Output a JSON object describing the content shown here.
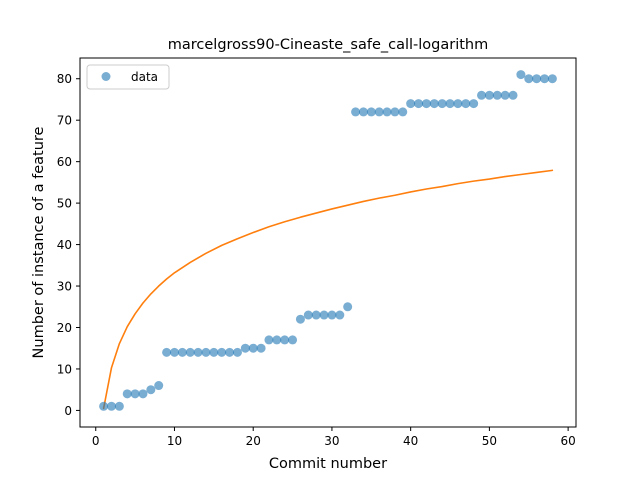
{
  "chart_data": {
    "type": "scatter",
    "title": "marcelgross90-Cineaste_safe_call-logarithm",
    "xlabel": "Commit number",
    "ylabel": "Number of instance of a feature",
    "xlim": [
      -2,
      61
    ],
    "ylim": [
      -4,
      85
    ],
    "xticks": [
      0,
      10,
      20,
      30,
      40,
      50,
      60
    ],
    "yticks": [
      0,
      10,
      20,
      30,
      40,
      50,
      60,
      70,
      80
    ],
    "grid": false,
    "legend": {
      "position": "upper-left",
      "entries": [
        "data"
      ]
    },
    "series": [
      {
        "name": "data",
        "kind": "scatter",
        "color": "#1f77b4",
        "x": [
          1,
          2,
          3,
          4,
          5,
          6,
          7,
          8,
          9,
          10,
          11,
          12,
          13,
          14,
          15,
          16,
          17,
          18,
          19,
          20,
          21,
          22,
          23,
          24,
          25,
          26,
          27,
          28,
          29,
          30,
          31,
          32,
          33,
          34,
          35,
          36,
          37,
          38,
          39,
          40,
          41,
          42,
          43,
          44,
          45,
          46,
          47,
          48,
          49,
          50,
          51,
          52,
          53,
          54,
          55,
          56,
          57,
          58
        ],
        "y": [
          1,
          1,
          1,
          4,
          4,
          4,
          5,
          6,
          14,
          14,
          14,
          14,
          14,
          14,
          14,
          14,
          14,
          14,
          15,
          15,
          15,
          17,
          17,
          17,
          17,
          22,
          23,
          23,
          23,
          23,
          23,
          25,
          72,
          72,
          72,
          72,
          72,
          72,
          72,
          74,
          74,
          74,
          74,
          74,
          74,
          74,
          74,
          74,
          76,
          76,
          76,
          76,
          76,
          81,
          80,
          80,
          80,
          80
        ]
      },
      {
        "kind": "line",
        "color": "#ff7f0e",
        "x": [
          1,
          2,
          3,
          4,
          5,
          6,
          7,
          8,
          9,
          10,
          12,
          14,
          16,
          18,
          20,
          22,
          24,
          26,
          28,
          30,
          32,
          34,
          36,
          38,
          40,
          42,
          44,
          46,
          48,
          50,
          52,
          54,
          56,
          58
        ],
        "y": [
          0.5,
          10.3,
          16.1,
          20.2,
          23.3,
          25.9,
          28.1,
          30.0,
          31.7,
          33.2,
          35.7,
          37.9,
          39.8,
          41.4,
          42.9,
          44.3,
          45.5,
          46.6,
          47.6,
          48.6,
          49.5,
          50.4,
          51.2,
          51.9,
          52.7,
          53.4,
          54.0,
          54.7,
          55.3,
          55.8,
          56.4,
          56.9,
          57.4,
          57.9
        ]
      }
    ]
  }
}
